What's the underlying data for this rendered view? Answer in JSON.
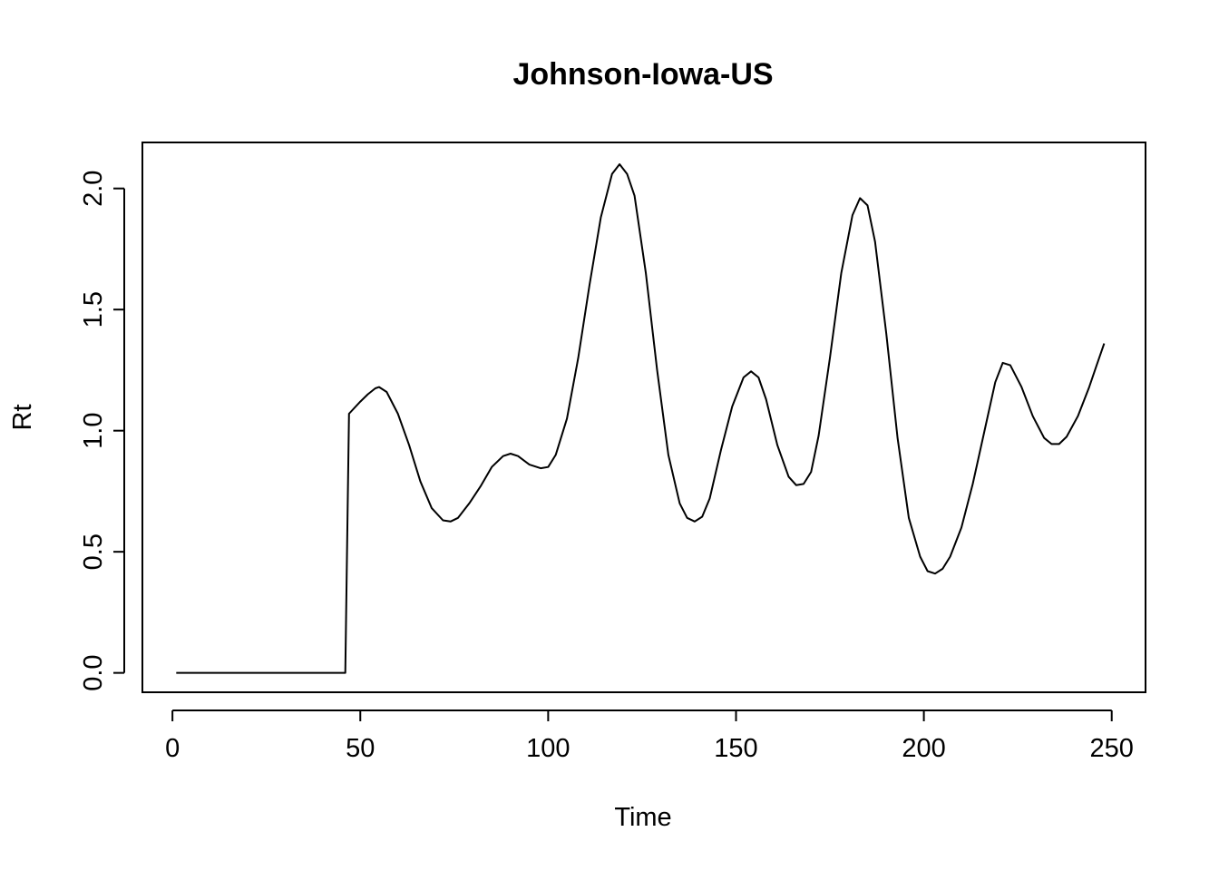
{
  "chart_data": {
    "type": "line",
    "title": "Johnson-Iowa-US",
    "xlabel": "Time",
    "ylabel": "Rt",
    "xlim": [
      -8,
      259
    ],
    "ylim": [
      -0.08,
      2.19
    ],
    "grid": false,
    "legend": "none",
    "colors": {
      "line": "#000000",
      "axis": "#000000",
      "background": "#ffffff"
    },
    "x_ticks": [
      {
        "value": 0,
        "label": "0"
      },
      {
        "value": 50,
        "label": "50"
      },
      {
        "value": 100,
        "label": "100"
      },
      {
        "value": 150,
        "label": "150"
      },
      {
        "value": 200,
        "label": "200"
      },
      {
        "value": 250,
        "label": "250"
      }
    ],
    "y_ticks": [
      {
        "value": 0.0,
        "label": "0.0"
      },
      {
        "value": 0.5,
        "label": "0.5"
      },
      {
        "value": 1.0,
        "label": "1.0"
      },
      {
        "value": 1.5,
        "label": "1.5"
      },
      {
        "value": 2.0,
        "label": "2.0"
      }
    ],
    "series": [
      {
        "x": [
          1,
          10,
          20,
          30,
          40,
          46,
          47,
          50,
          52,
          54,
          55,
          57,
          60,
          63,
          66,
          69,
          72,
          74,
          76,
          79,
          82,
          85,
          88,
          90,
          92,
          95,
          98,
          100,
          102,
          105,
          108,
          111,
          114,
          117,
          119,
          121,
          123,
          126,
          129,
          132,
          135,
          137,
          139,
          141,
          143,
          146,
          149,
          152,
          154,
          156,
          158,
          161,
          164,
          166,
          168,
          170,
          172,
          175,
          178,
          181,
          183,
          185,
          187,
          190,
          193,
          196,
          199,
          201,
          203,
          205,
          207,
          210,
          213,
          216,
          219,
          221,
          223,
          226,
          229,
          232,
          234,
          236,
          238,
          241,
          244,
          246,
          248
        ],
        "y": [
          0.0,
          0.0,
          0.0,
          0.0,
          0.0,
          0.0,
          1.07,
          1.12,
          1.15,
          1.175,
          1.18,
          1.16,
          1.07,
          0.94,
          0.79,
          0.68,
          0.63,
          0.625,
          0.64,
          0.7,
          0.77,
          0.85,
          0.895,
          0.905,
          0.895,
          0.86,
          0.845,
          0.85,
          0.9,
          1.05,
          1.3,
          1.6,
          1.88,
          2.06,
          2.1,
          2.06,
          1.97,
          1.65,
          1.25,
          0.9,
          0.7,
          0.64,
          0.625,
          0.645,
          0.72,
          0.92,
          1.1,
          1.22,
          1.245,
          1.22,
          1.13,
          0.94,
          0.81,
          0.775,
          0.78,
          0.83,
          0.98,
          1.3,
          1.65,
          1.89,
          1.96,
          1.93,
          1.78,
          1.4,
          0.97,
          0.64,
          0.48,
          0.42,
          0.41,
          0.43,
          0.48,
          0.6,
          0.78,
          0.99,
          1.2,
          1.28,
          1.27,
          1.18,
          1.06,
          0.97,
          0.945,
          0.945,
          0.975,
          1.06,
          1.18,
          1.27,
          1.36
        ]
      }
    ]
  }
}
